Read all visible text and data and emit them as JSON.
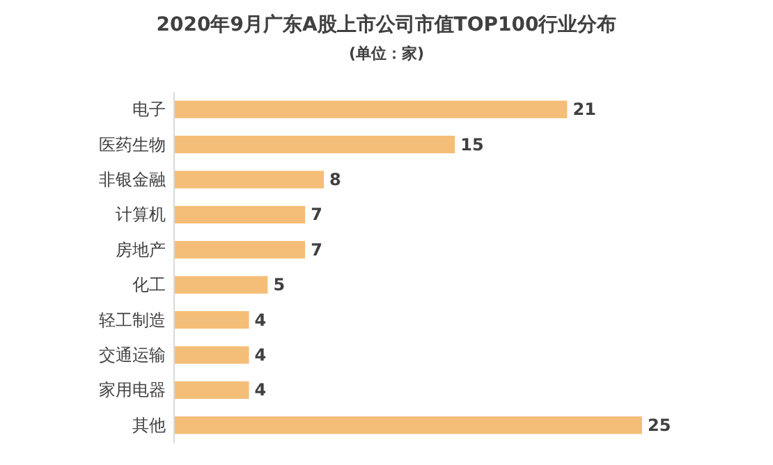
{
  "chart_data": {
    "type": "bar",
    "orientation": "horizontal",
    "title": "2020年9月广东A股上市公司市值TOP100行业分布",
    "subtitle": "(单位：家)",
    "categories": [
      "电子",
      "医药生物",
      "非银金融",
      "计算机",
      "房地产",
      "化工",
      "轻工制造",
      "交通运输",
      "家用电器",
      "其他"
    ],
    "values": [
      21,
      15,
      8,
      7,
      7,
      5,
      4,
      4,
      4,
      25
    ],
    "color": "#f4be78",
    "data_labels": true
  }
}
